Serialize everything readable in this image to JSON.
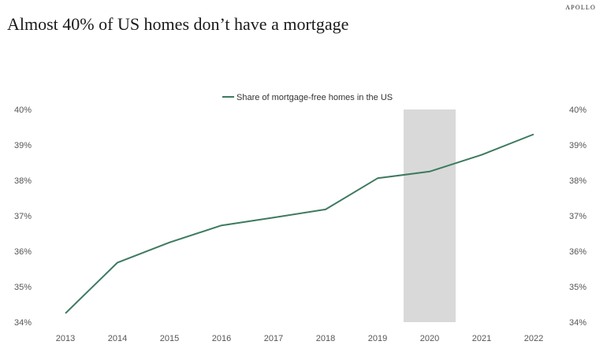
{
  "brand": "APOLLO",
  "chart_data": {
    "type": "line",
    "title": "Almost 40% of US homes don’t have a mortgage",
    "categories": [
      "2013",
      "2014",
      "2015",
      "2016",
      "2017",
      "2018",
      "2019",
      "2020",
      "2021",
      "2022"
    ],
    "series": [
      {
        "name": "Share of mortgage-free homes in the US",
        "values": [
          34.25,
          35.68,
          36.25,
          36.73,
          36.95,
          37.18,
          38.06,
          38.25,
          38.72,
          39.3
        ]
      }
    ],
    "yticks": [
      "34%",
      "35%",
      "36%",
      "37%",
      "38%",
      "39%",
      "40%"
    ],
    "ylim": [
      34,
      40
    ],
    "y_axis_both_sides": true,
    "shaded_period": "2020",
    "legend": "top-center",
    "grid": false,
    "colors": {
      "line": "#3d7a5f",
      "shade": "#d9d9d9",
      "tick_text": "#555555"
    }
  }
}
